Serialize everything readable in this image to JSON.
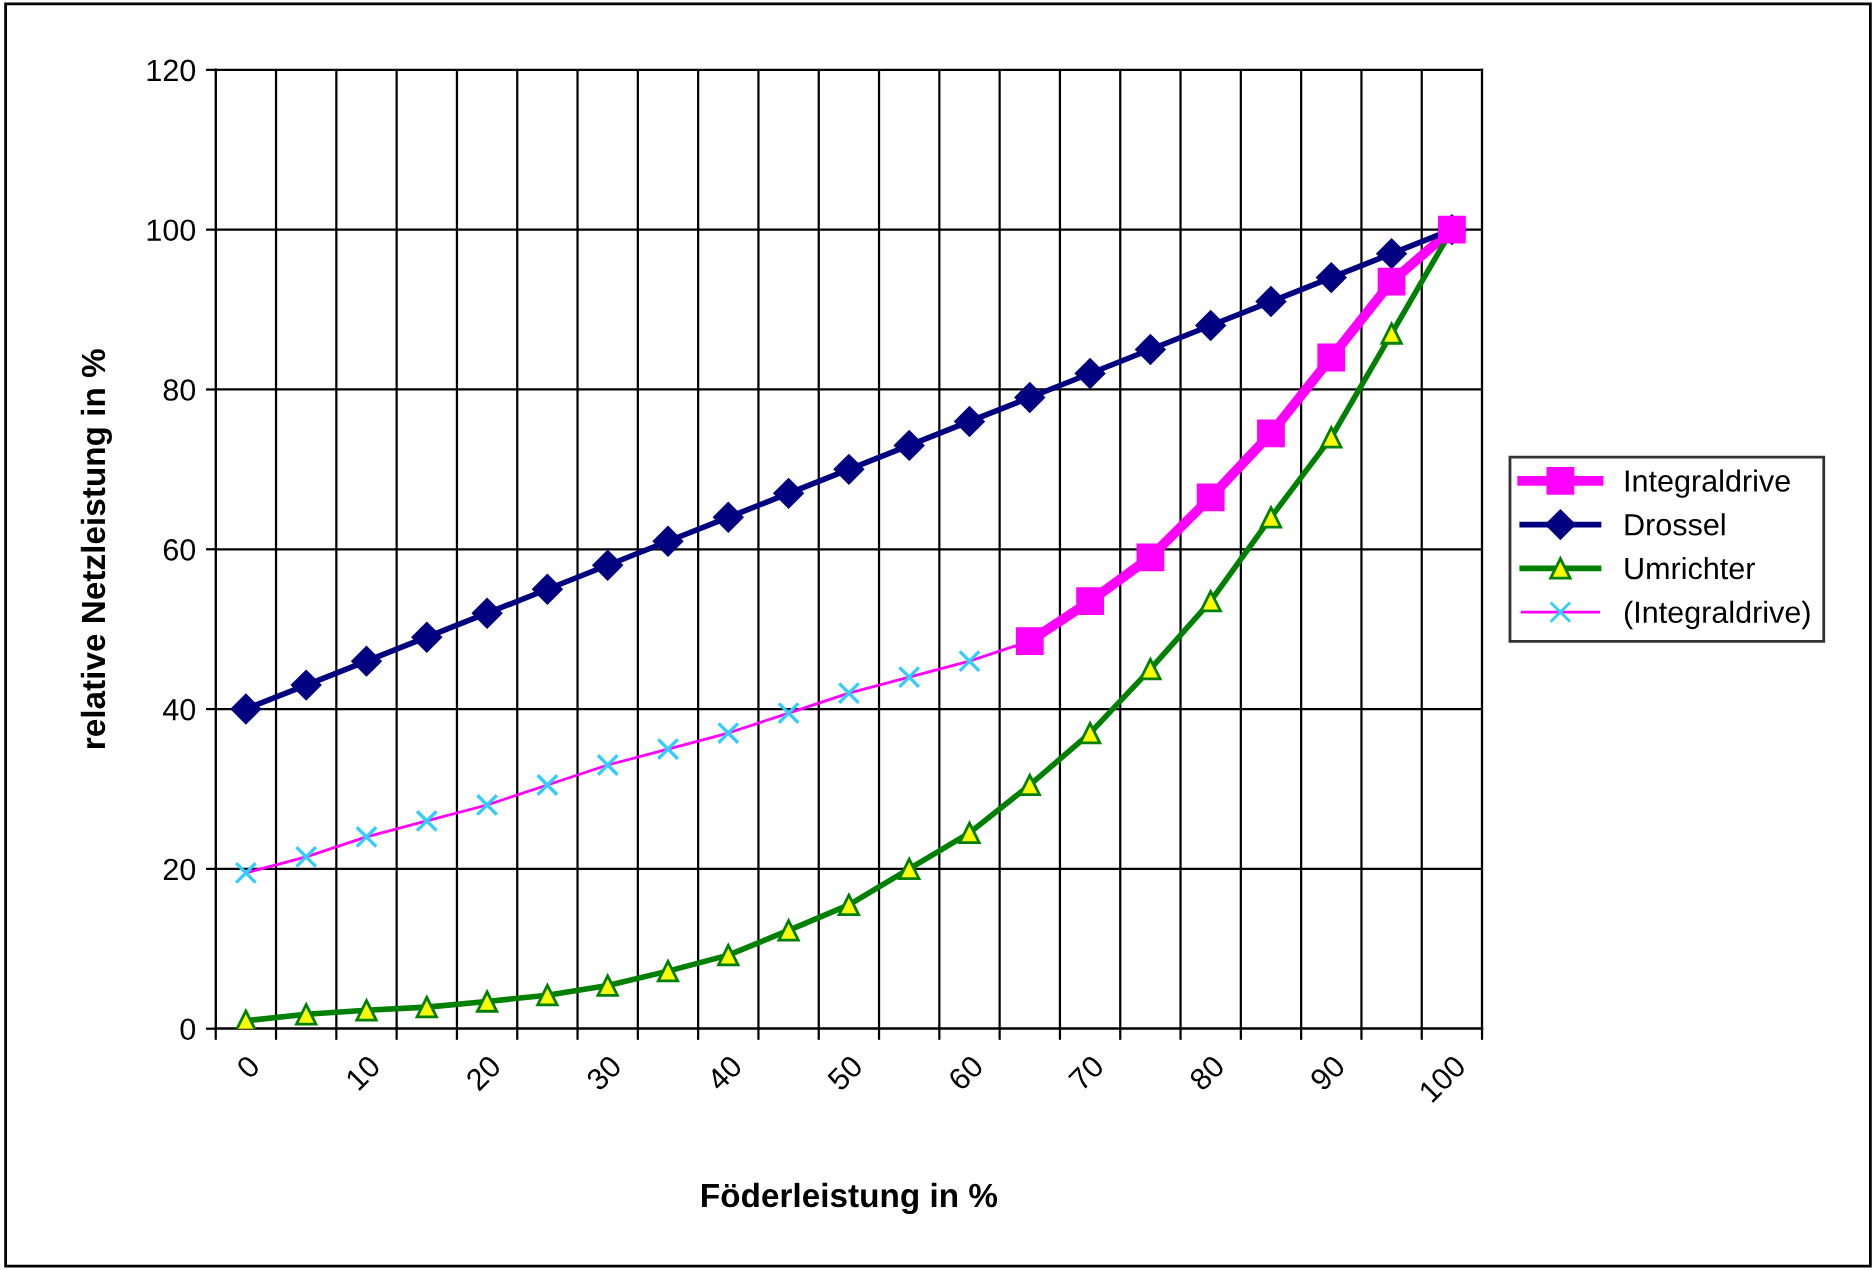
{
  "chart_data": {
    "type": "line",
    "xlabel": "Föderleistung in %",
    "ylabel": "relative Netzleistung in %",
    "categories": [
      "0",
      null,
      "10",
      null,
      "20",
      null,
      "30",
      null,
      "40",
      null,
      "50",
      null,
      "60",
      null,
      "70",
      null,
      "80",
      null,
      "90",
      null,
      "100"
    ],
    "series": [
      {
        "name": "Integraldrive",
        "color": "#ff00ff",
        "marker": "square",
        "values": [
          null,
          null,
          null,
          null,
          null,
          null,
          null,
          null,
          null,
          null,
          null,
          null,
          null,
          48.5,
          53.5,
          59,
          66.5,
          74.5,
          84,
          93.5,
          100
        ]
      },
      {
        "name": "Drossel",
        "color": "#000080",
        "marker": "diamond",
        "values": [
          40,
          43,
          46,
          49,
          52,
          55,
          58,
          61,
          64,
          67,
          70,
          73,
          76,
          79,
          82,
          85,
          88,
          91,
          94,
          97,
          100
        ]
      },
      {
        "name": "Umrichter",
        "color": "#008000",
        "marker": "triangle",
        "colors": [
          "#ffff00",
          "#ffff00",
          "#ffff00",
          "#ffff00",
          "#ffff00",
          "#ffff00",
          "#ffff00",
          "#ffff00",
          "#ffff00",
          "#ffff00",
          "#ffff00",
          "#ffff00",
          "#ffff00",
          "#ffff00",
          "#ffff00",
          "#ffff00",
          "#ffff00",
          "#ffff00",
          "#ffff00",
          "#ffff00",
          "#ffff00"
        ],
        "values": [
          1,
          1.8,
          2.3,
          2.7,
          3.4,
          4.2,
          5.4,
          7.2,
          9.2,
          12.3,
          15.5,
          20,
          24.5,
          30.5,
          37,
          45,
          53.5,
          64,
          74,
          87,
          100
        ]
      },
      {
        "name": "(Integraldrive)",
        "color": "#ff00ff",
        "marker": "cross",
        "colors": [
          "#33ccff",
          "#33ccff",
          "#33ccff",
          "#33ccff",
          "#33ccff",
          "#33ccff",
          "#33ccff",
          "#33ccff",
          "#33ccff",
          "#33ccff",
          "#33ccff",
          "#33ccff",
          "#33ccff",
          "#33ccff",
          "#33ccff",
          "#33ccff",
          "#33ccff",
          "#33ccff",
          "#33ccff",
          "#33ccff",
          "#33ccff"
        ],
        "values": [
          19.5,
          21.5,
          24,
          26,
          28,
          30.5,
          33,
          35,
          37,
          39.5,
          42,
          44,
          46,
          48.5,
          null,
          null,
          null,
          null,
          null,
          null,
          null
        ]
      }
    ],
    "ylim": [
      0,
      120
    ],
    "yticks": [
      0,
      20,
      40,
      60,
      80,
      100,
      120
    ],
    "grid": true,
    "legend": "right"
  }
}
